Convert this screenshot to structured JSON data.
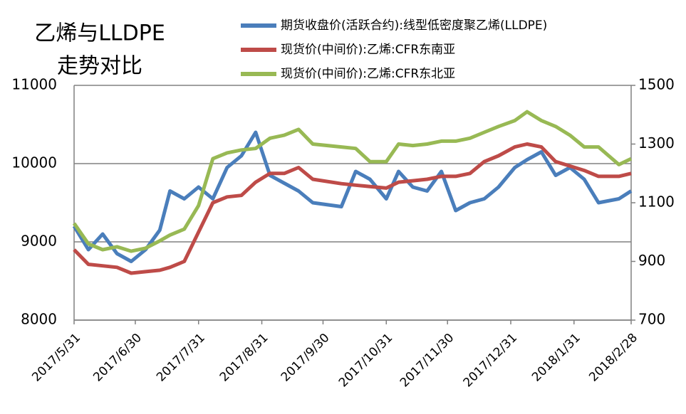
{
  "chart_data": {
    "type": "line",
    "title": [
      "乙烯与LLDPE",
      "走势对比"
    ],
    "x": [
      "2017/5/31",
      "2017/6/7",
      "2017/6/14",
      "2017/6/21",
      "2017/6/28",
      "2017/7/5",
      "2017/7/12",
      "2017/7/17",
      "2017/7/24",
      "2017/7/31",
      "2017/8/7",
      "2017/8/14",
      "2017/8/21",
      "2017/8/28",
      "2017/9/4",
      "2017/9/11",
      "2017/9/18",
      "2017/9/25",
      "2017/10/9",
      "2017/10/16",
      "2017/10/23",
      "2017/10/31",
      "2017/11/6",
      "2017/11/13",
      "2017/11/20",
      "2017/11/27",
      "2017/12/4",
      "2017/12/11",
      "2017/12/18",
      "2017/12/25",
      "2018/1/2",
      "2018/1/8",
      "2018/1/15",
      "2018/1/22",
      "2018/1/29",
      "2018/2/5",
      "2018/2/12",
      "2018/2/22",
      "2018/2/28"
    ],
    "xlim": [
      "2017/5/31",
      "2018/2/28"
    ],
    "xticks": [
      "2017/5/31",
      "2017/6/30",
      "2017/7/31",
      "2017/8/31",
      "2017/9/30",
      "2017/10/31",
      "2017/11/30",
      "2017/12/31",
      "2018/1/31",
      "2018/2/28"
    ],
    "ylim": [
      8000,
      11000
    ],
    "yticks": [
      8000,
      9000,
      10000,
      11000
    ],
    "y2lim": [
      700,
      1500
    ],
    "y2ticks": [
      700,
      900,
      1100,
      1300,
      1500
    ],
    "grid": true,
    "legend": "top-right",
    "series": [
      {
        "name": "期货收盘价(活跃合约):线型低密度聚乙烯(LLDPE)",
        "color": "#4a7ebb",
        "axis": "y",
        "values": [
          9200,
          8900,
          9100,
          8850,
          8750,
          8900,
          9150,
          9650,
          9550,
          9700,
          9550,
          9950,
          10100,
          10400,
          9850,
          9750,
          9650,
          9500,
          9450,
          9900,
          9800,
          9550,
          9900,
          9700,
          9650,
          9900,
          9400,
          9500,
          9550,
          9700,
          9950,
          10050,
          10150,
          9850,
          9950,
          9800,
          9500,
          9550,
          9650
        ]
      },
      {
        "name": "现货价(中间价):乙烯:CFR东南亚",
        "color": "#be4b48",
        "axis": "y2",
        "values": [
          940,
          890,
          885,
          880,
          860,
          865,
          870,
          880,
          900,
          1000,
          1100,
          1120,
          1125,
          1170,
          1200,
          1200,
          1220,
          1180,
          1165,
          1160,
          1155,
          1150,
          1170,
          1175,
          1180,
          1190,
          1190,
          1200,
          1240,
          1260,
          1290,
          1300,
          1290,
          1240,
          1225,
          1210,
          1190,
          1190,
          1200
        ]
      },
      {
        "name": "现货价(中间价):乙烯:CFR东北亚",
        "color": "#98b954",
        "axis": "y2",
        "values": [
          1030,
          960,
          940,
          950,
          935,
          945,
          970,
          990,
          1010,
          1090,
          1250,
          1270,
          1280,
          1285,
          1320,
          1330,
          1350,
          1300,
          1290,
          1285,
          1240,
          1240,
          1300,
          1295,
          1300,
          1310,
          1310,
          1320,
          1340,
          1360,
          1380,
          1410,
          1380,
          1360,
          1330,
          1290,
          1290,
          1230,
          1250
        ]
      }
    ]
  }
}
